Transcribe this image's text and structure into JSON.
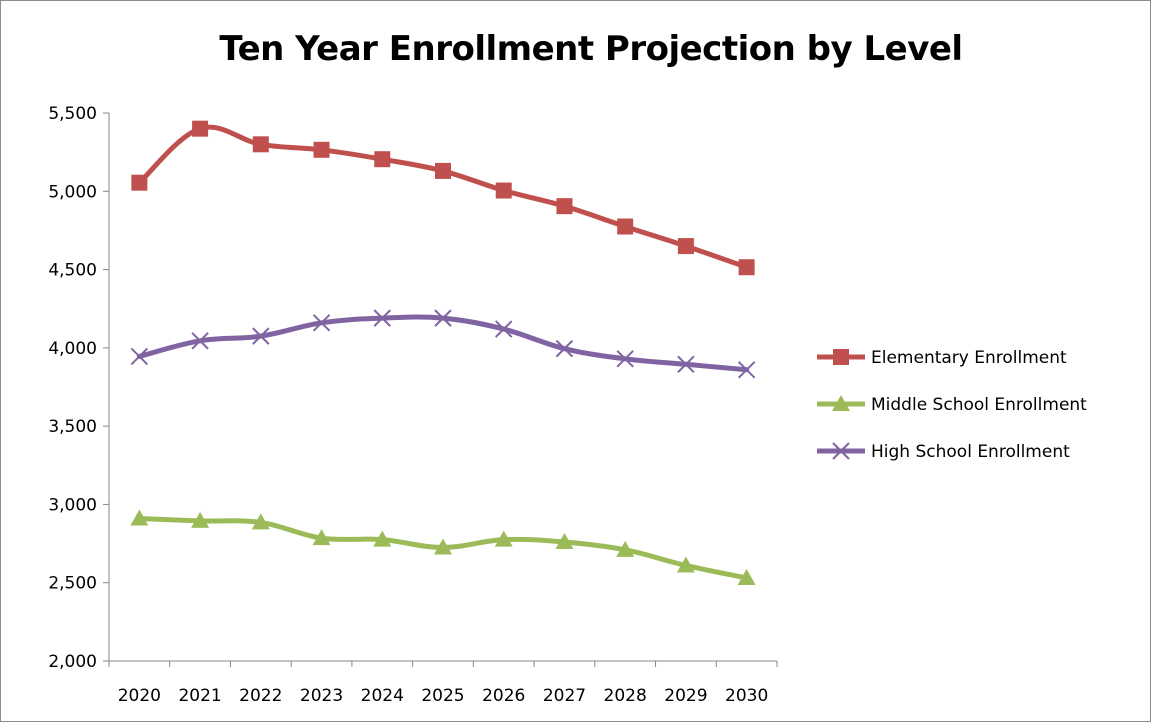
{
  "chart_data": {
    "type": "line",
    "title": "Ten Year Enrollment Projection by Level",
    "xlabel": "",
    "ylabel": "",
    "categories": [
      "2020",
      "2021",
      "2022",
      "2023",
      "2024",
      "2025",
      "2026",
      "2027",
      "2028",
      "2029",
      "2030"
    ],
    "ylim": [
      2000,
      5500
    ],
    "yticks": [
      2000,
      2500,
      3000,
      3500,
      4000,
      4500,
      5000,
      5500
    ],
    "ytick_labels": [
      "2,000",
      "2,500",
      "3,000",
      "3,500",
      "4,000",
      "4,500",
      "5,000",
      "5,500"
    ],
    "grid": false,
    "legend_position": "right",
    "series": [
      {
        "name": "Elementary Enrollment",
        "color": "#c0504d",
        "marker": "square",
        "values": [
          5055,
          5400,
          5300,
          5265,
          5205,
          5130,
          5005,
          4905,
          4775,
          4650,
          4515
        ]
      },
      {
        "name": "Middle School Enrollment",
        "color": "#9bbb59",
        "marker": "triangle",
        "values": [
          2910,
          2895,
          2885,
          2785,
          2775,
          2725,
          2775,
          2760,
          2710,
          2610,
          2530
        ]
      },
      {
        "name": "High School Enrollment",
        "color": "#8064a2",
        "marker": "x",
        "values": [
          3945,
          4045,
          4075,
          4160,
          4190,
          4190,
          4120,
          3995,
          3930,
          3895,
          3860
        ]
      }
    ]
  }
}
